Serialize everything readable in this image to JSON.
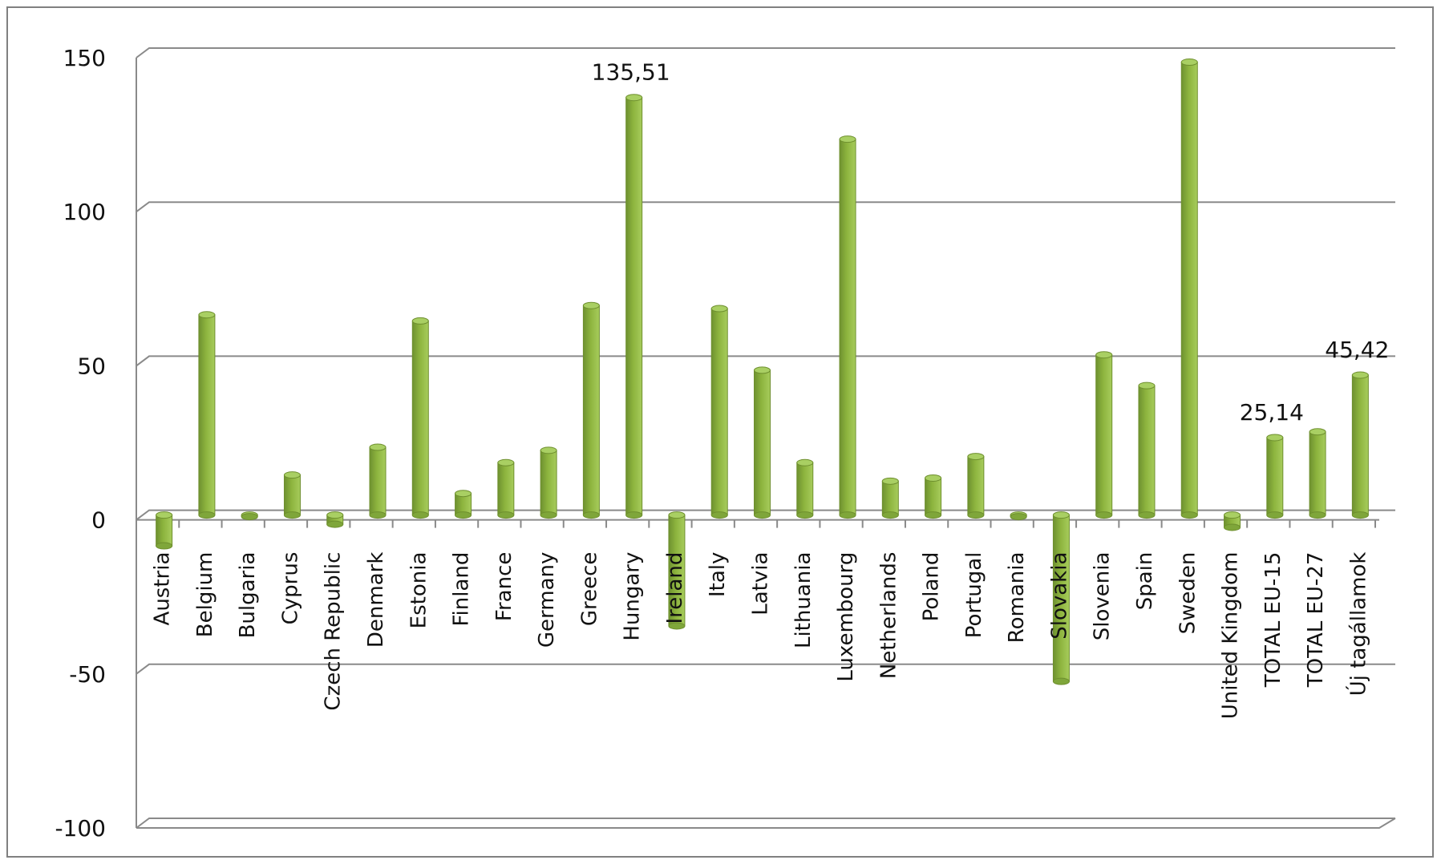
{
  "chart_data": {
    "type": "bar",
    "title": "",
    "xlabel": "",
    "ylabel": "",
    "ylim": [
      -100,
      150
    ],
    "yticks": [
      -100,
      -50,
      0,
      50,
      100,
      150
    ],
    "grid": true,
    "legend": "none",
    "bar_color": "#8DB43E",
    "categories": [
      "Austria",
      "Belgium",
      "Bulgaria",
      "Cyprus",
      "Czech Republic",
      "Denmark",
      "Estonia",
      "Finland",
      "France",
      "Germany",
      "Greece",
      "Hungary",
      "Ireland",
      "Italy",
      "Latvia",
      "Lithuania",
      "Luxembourg",
      "Netherlands",
      "Poland",
      "Portugal",
      "Romania",
      "Slovakia",
      "Slovenia",
      "Spain",
      "Sweden",
      "United Kingdom",
      "TOTAL EU-15",
      "TOTAL EU-27",
      "Új tagállamok"
    ],
    "values": [
      -10,
      65,
      0,
      13,
      -3,
      22,
      63,
      7,
      17,
      21,
      68,
      135.51,
      -36,
      67,
      47,
      17,
      122,
      11,
      12,
      19,
      0,
      -54,
      52,
      42,
      147,
      -4,
      25.14,
      27,
      45.42
    ],
    "data_labels": [
      {
        "category": "Hungary",
        "text": "135,51"
      },
      {
        "category": "TOTAL EU-15",
        "text": "25,14"
      },
      {
        "category": "Új tagállamok",
        "text": "45,42"
      }
    ]
  }
}
